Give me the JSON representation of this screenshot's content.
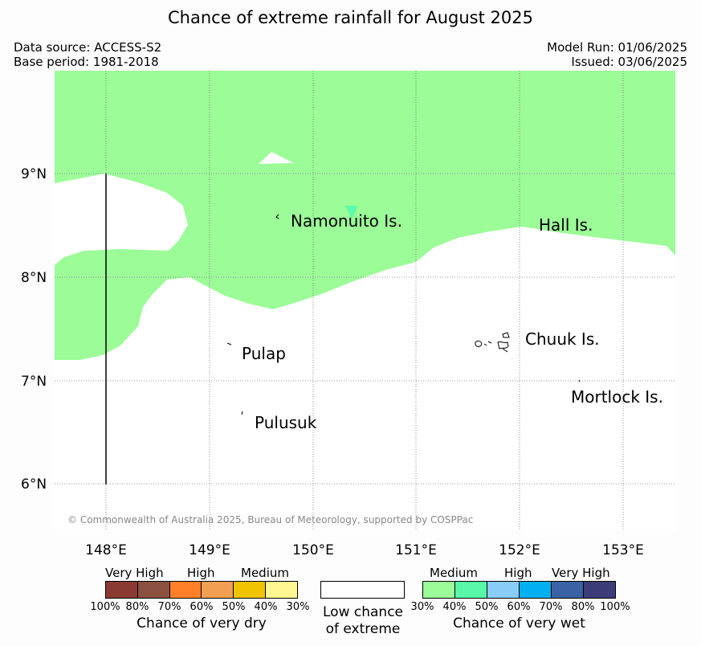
{
  "title": "Chance of extreme rainfall for August 2025",
  "meta": {
    "source": "Data source: ACCESS-S2",
    "base": "Base period: 1981-2018",
    "model_run": "Model Run: 01/06/2025",
    "issued": "Issued: 03/06/2025"
  },
  "map": {
    "lat_labels": [
      "9°N",
      "8°N",
      "7°N",
      "6°N"
    ],
    "lon_labels": [
      "148°E",
      "149°E",
      "150°E",
      "151°E",
      "152°E",
      "153°E"
    ],
    "places": [
      "Namonuito Is.",
      "Hall Is.",
      "Pulap",
      "Chuuk Is.",
      "Mortlock Is.",
      "Pulusuk"
    ],
    "copyright": "© Commonwealth of Australia 2025, Bureau of Meteorology, supported by COSPPac",
    "colors": {
      "ocean": "#ffffff",
      "wet_medium": "#9cfc98",
      "wet_medium_high": "#5afcac"
    }
  },
  "legend": {
    "dry": {
      "headings": [
        "Very High",
        "High",
        "Medium"
      ],
      "colors": [
        "#8b3a33",
        "#8b5040",
        "#ff8028",
        "#f0a050",
        "#f0c400",
        "#fff890"
      ],
      "ticks": [
        "100%",
        "80%",
        "70%",
        "60%",
        "50%",
        "40%",
        "30%"
      ],
      "title": "Chance of very dry"
    },
    "low": {
      "line1": "Low chance",
      "line2": "of extreme"
    },
    "wet": {
      "headings": [
        "Medium",
        "High",
        "Very High"
      ],
      "colors": [
        "#9cfc98",
        "#58f8a8",
        "#88ccf8",
        "#00b0f0",
        "#3a62a4",
        "#3c3c78"
      ],
      "ticks": [
        "30%",
        "40%",
        "50%",
        "60%",
        "70%",
        "80%",
        "100%"
      ],
      "title": "Chance of very wet"
    }
  }
}
